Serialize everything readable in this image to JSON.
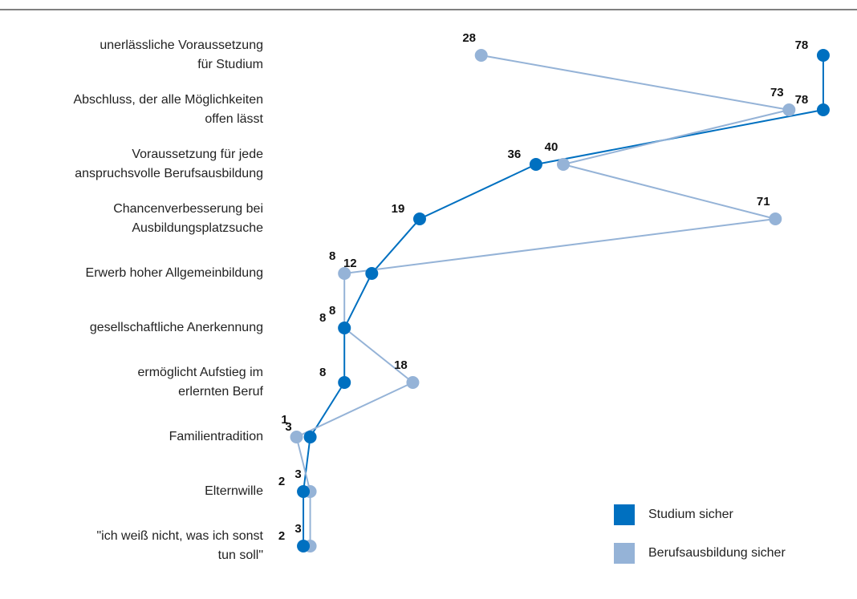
{
  "chart_data": {
    "type": "line",
    "orientation": "horizontal",
    "categories": [
      "unerlässliche Voraussetzung\nfür Studium",
      "Abschluss, der alle Möglichkeiten\noffen lässt",
      "Voraussetzung für jede\nanspruchsvolle Berufsausbildung",
      "Chancenverbesserung bei\nAusbildungsplatzsuche",
      "Erwerb hoher Allgemeinbildung",
      "gesellschaftliche Anerkennung",
      "ermöglicht Aufstieg im\nerlernten Beruf",
      "Familientradition",
      "Elternwille",
      "\"ich weiß nicht, was ich sonst\ntun soll\""
    ],
    "series": [
      {
        "name": "Studium sicher",
        "color": "#0070c0",
        "values": [
          78,
          78,
          36,
          19,
          12,
          8,
          8,
          3,
          2,
          2
        ]
      },
      {
        "name": "Berufsausbildung sicher",
        "color": "#95b3d7",
        "values": [
          28,
          73,
          40,
          71,
          8,
          8,
          18,
          1,
          3,
          3
        ]
      }
    ],
    "xlim": [
      0,
      80
    ]
  }
}
